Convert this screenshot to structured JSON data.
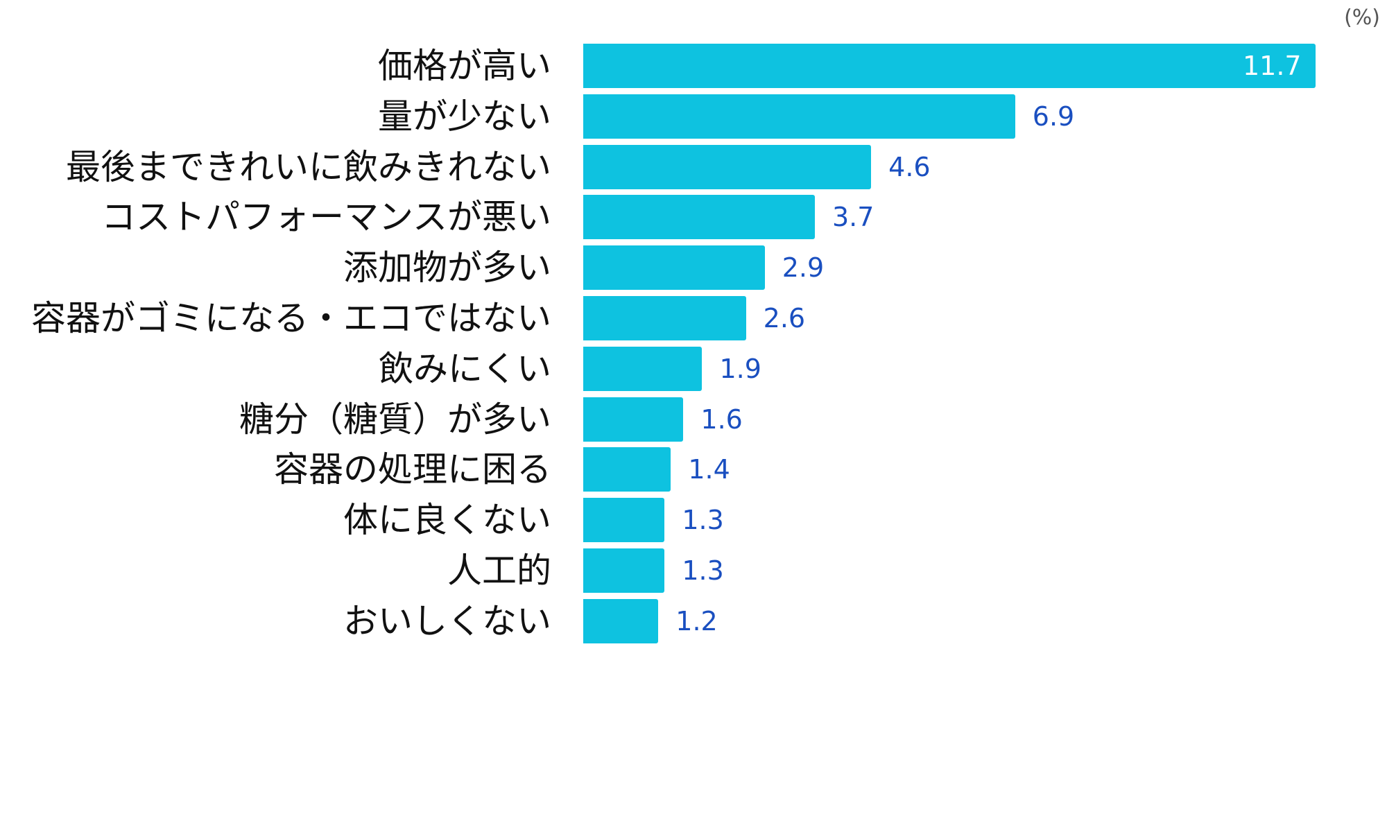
{
  "chart_data": {
    "type": "bar",
    "orientation": "horizontal",
    "unit_label": "(%)",
    "categories": [
      "価格が高い",
      "量が少ない",
      "最後まできれいに飲みきれない",
      "コストパフォーマンスが悪い",
      "添加物が多い",
      "容器がゴミになる・エコではない",
      "飲みにくい",
      "糖分（糖質）が多い",
      "容器の処理に困る",
      "体に良くない",
      "人工的",
      "おいしくない"
    ],
    "values": [
      11.7,
      6.9,
      4.6,
      3.7,
      2.9,
      2.6,
      1.9,
      1.6,
      1.4,
      1.3,
      1.3,
      1.2
    ],
    "value_labels": [
      "11.7",
      "6.9",
      "4.6",
      "3.7",
      "2.9",
      "2.6",
      "1.9",
      "1.6",
      "1.4",
      "1.3",
      "1.3",
      "1.2"
    ],
    "xlim": [
      0,
      11.7
    ],
    "grid": false,
    "legend": "none",
    "colors": {
      "bar": "#0ec2e0",
      "value_label": "#1a4fc0",
      "value_label_inside": "#ffffff"
    }
  }
}
